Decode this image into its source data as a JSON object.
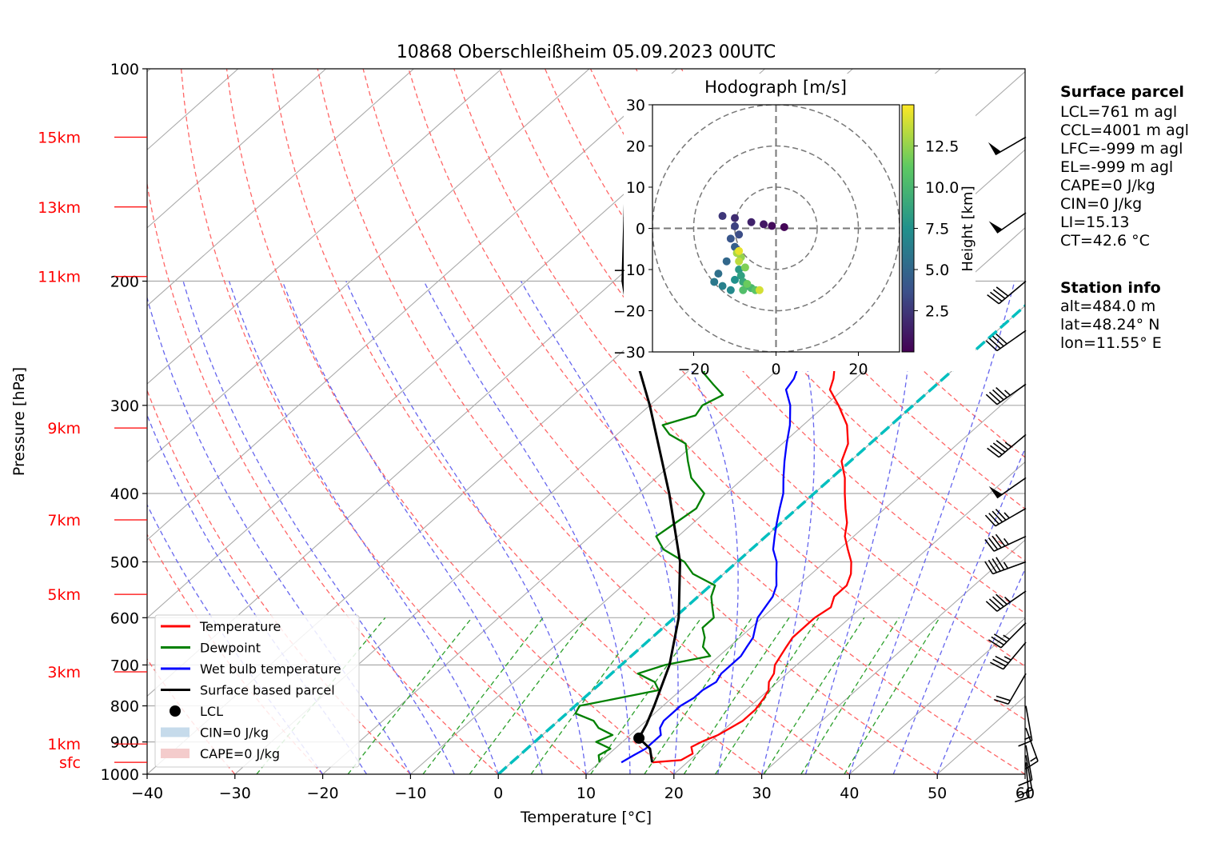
{
  "title": "10868 Oberschleißheim 05.09.2023 00UTC",
  "colors": {
    "temperature": "#ff0000",
    "dewpoint": "#008000",
    "wetbulb": "#0000ff",
    "parcel": "#000000",
    "freezing_level": "#00bfbf",
    "dry_adiabats": "#ff6666",
    "moist_adiabats": "#6666ee",
    "mixing_ratio": "#2ca02c",
    "isotherms": "#aaaaaa",
    "height_labels": "#ff0000"
  },
  "chart_data": {
    "type": "line",
    "subtype": "skew-T log-p diagram",
    "title": "10868 Oberschleißheim 05.09.2023 00UTC",
    "xlabel": "Temperature [°C]",
    "ylabel": "Pressure [hPa]",
    "xlim": [
      -40,
      60
    ],
    "ylim": [
      1000,
      100
    ],
    "y_scale": "log",
    "grid": true,
    "legend_position": "lower-left",
    "x_ticks": [
      "−40",
      "−30",
      "−20",
      "−10",
      "0",
      "10",
      "20",
      "30",
      "40",
      "50",
      "60"
    ],
    "y_ticks": [
      "100",
      "200",
      "300",
      "400",
      "500",
      "600",
      "700",
      "800",
      "900",
      "1000"
    ],
    "height_labels": [
      {
        "label": "15km",
        "p": 125
      },
      {
        "label": "13km",
        "p": 157
      },
      {
        "label": "11km",
        "p": 197
      },
      {
        "label": "9km",
        "p": 323
      },
      {
        "label": "7km",
        "p": 436
      },
      {
        "label": "5km",
        "p": 556
      },
      {
        "label": "3km",
        "p": 716
      },
      {
        "label": "1km",
        "p": 906
      },
      {
        "label": "sfc",
        "p": 962
      }
    ],
    "legend": [
      {
        "label": "Temperature",
        "kind": "line",
        "color": "#ff0000"
      },
      {
        "label": "Dewpoint",
        "kind": "line",
        "color": "#008000"
      },
      {
        "label": "Wet bulb temperature",
        "kind": "line",
        "color": "#0000ff"
      },
      {
        "label": "Surface based parcel",
        "kind": "line",
        "color": "#000000"
      },
      {
        "label": "LCL",
        "kind": "dot",
        "color": "#000000"
      },
      {
        "label": "CIN=0 J/kg",
        "kind": "patch",
        "color": "#c6dbeb"
      },
      {
        "label": "CAPE=0 J/kg",
        "kind": "patch",
        "color": "#f4cccc"
      }
    ],
    "series": [
      {
        "name": "Temperature",
        "points": [
          [
            962,
            16.0
          ],
          [
            955,
            19.0
          ],
          [
            935,
            19.5
          ],
          [
            915,
            18.5
          ],
          [
            900,
            19.0
          ],
          [
            880,
            20.0
          ],
          [
            860,
            20.5
          ],
          [
            840,
            21.0
          ],
          [
            810,
            21.0
          ],
          [
            780,
            20.5
          ],
          [
            760,
            20.0
          ],
          [
            740,
            19.0
          ],
          [
            720,
            18.5
          ],
          [
            700,
            17.5
          ],
          [
            680,
            17.0
          ],
          [
            660,
            16.5
          ],
          [
            640,
            16.0
          ],
          [
            620,
            16.0
          ],
          [
            600,
            16.0
          ],
          [
            580,
            16.5
          ],
          [
            560,
            15.5
          ],
          [
            540,
            15.5
          ],
          [
            520,
            14.5
          ],
          [
            500,
            13.0
          ],
          [
            480,
            11.0
          ],
          [
            460,
            9.0
          ],
          [
            440,
            7.5
          ],
          [
            420,
            5.5
          ],
          [
            400,
            3.5
          ],
          [
            380,
            1.5
          ],
          [
            360,
            -1.0
          ],
          [
            340,
            -2.5
          ],
          [
            320,
            -5.0
          ],
          [
            300,
            -8.5
          ],
          [
            285,
            -11.5
          ],
          [
            275,
            -12.5
          ],
          [
            260,
            -14.5
          ],
          [
            240,
            -17.5
          ],
          [
            225,
            -20.0
          ],
          [
            210,
            -22.5
          ],
          [
            195,
            -25.5
          ],
          [
            180,
            -28.5
          ],
          [
            170,
            -30.5
          ],
          [
            160,
            -33.5
          ],
          [
            150,
            -36.0
          ],
          [
            140,
            -39.5
          ],
          [
            130,
            -42.5
          ],
          [
            125,
            -44.5
          ]
        ]
      },
      {
        "name": "Dewpoint",
        "points": [
          [
            962,
            10.0
          ],
          [
            940,
            9.0
          ],
          [
            920,
            9.5
          ],
          [
            900,
            7.0
          ],
          [
            880,
            8.0
          ],
          [
            860,
            5.5
          ],
          [
            840,
            4.0
          ],
          [
            820,
            1.0
          ],
          [
            800,
            0.5
          ],
          [
            780,
            4.0
          ],
          [
            760,
            7.5
          ],
          [
            740,
            6.0
          ],
          [
            720,
            3.0
          ],
          [
            700,
            5.0
          ],
          [
            680,
            9.0
          ],
          [
            660,
            7.0
          ],
          [
            640,
            6.0
          ],
          [
            620,
            4.5
          ],
          [
            600,
            4.5
          ],
          [
            580,
            3.0
          ],
          [
            560,
            1.5
          ],
          [
            540,
            0.5
          ],
          [
            520,
            -3.5
          ],
          [
            500,
            -6.0
          ],
          [
            480,
            -10.0
          ],
          [
            460,
            -12.5
          ],
          [
            440,
            -12.0
          ],
          [
            420,
            -11.5
          ],
          [
            400,
            -12.5
          ],
          [
            380,
            -16.0
          ],
          [
            360,
            -18.5
          ],
          [
            340,
            -21.0
          ],
          [
            330,
            -24.0
          ],
          [
            320,
            -26.0
          ],
          [
            310,
            -23.5
          ],
          [
            300,
            -24.0
          ],
          [
            290,
            -23.0
          ],
          [
            280,
            -25.5
          ],
          [
            270,
            -28.0
          ],
          [
            260,
            -29.0
          ],
          [
            250,
            -32.0
          ],
          [
            240,
            -35.5
          ],
          [
            230,
            -36.5
          ],
          [
            220,
            -38.5
          ],
          [
            210,
            -40.0
          ],
          [
            200,
            -41.0
          ],
          [
            190,
            -42.5
          ],
          [
            180,
            -43.5
          ],
          [
            170,
            -46.5
          ],
          [
            160,
            -48.0
          ],
          [
            150,
            -51.0
          ],
          [
            145,
            -54.0
          ],
          [
            140,
            -56.0
          ],
          [
            135,
            -56.5
          ],
          [
            130,
            -56.0
          ],
          [
            125,
            -56.5
          ]
        ]
      },
      {
        "name": "Wet bulb temperature",
        "points": [
          [
            962,
            12.5
          ],
          [
            940,
            13.0
          ],
          [
            920,
            13.5
          ],
          [
            900,
            13.5
          ],
          [
            880,
            13.5
          ],
          [
            860,
            12.5
          ],
          [
            840,
            12.0
          ],
          [
            820,
            12.0
          ],
          [
            800,
            12.0
          ],
          [
            780,
            12.5
          ],
          [
            760,
            12.5
          ],
          [
            740,
            13.0
          ],
          [
            720,
            12.5
          ],
          [
            700,
            12.5
          ],
          [
            680,
            12.5
          ],
          [
            660,
            12.0
          ],
          [
            640,
            11.5
          ],
          [
            620,
            10.5
          ],
          [
            600,
            9.5
          ],
          [
            580,
            9.0
          ],
          [
            560,
            8.5
          ],
          [
            540,
            7.5
          ],
          [
            520,
            6.0
          ],
          [
            500,
            4.5
          ],
          [
            480,
            2.5
          ],
          [
            460,
            1.0
          ],
          [
            440,
            -0.5
          ],
          [
            420,
            -2.0
          ],
          [
            400,
            -3.5
          ],
          [
            380,
            -5.5
          ],
          [
            360,
            -7.5
          ],
          [
            340,
            -9.5
          ],
          [
            320,
            -11.5
          ],
          [
            300,
            -14.0
          ],
          [
            285,
            -16.5
          ],
          [
            275,
            -17.0
          ],
          [
            260,
            -18.5
          ],
          [
            240,
            -21.0
          ],
          [
            225,
            -23.5
          ],
          [
            210,
            -26.0
          ],
          [
            195,
            -29.0
          ],
          [
            180,
            -32.0
          ],
          [
            170,
            -34.0
          ],
          [
            160,
            -37.0
          ],
          [
            150,
            -40.0
          ],
          [
            140,
            -43.5
          ],
          [
            135,
            -45.0
          ],
          [
            130,
            -45.5
          ],
          [
            125,
            -47.0
          ]
        ]
      },
      {
        "name": "Surface based parcel",
        "points": [
          [
            962,
            16.0
          ],
          [
            920,
            14.0
          ],
          [
            889,
            11.4
          ],
          [
            850,
            10.5
          ],
          [
            800,
            9.0
          ],
          [
            700,
            5.5
          ],
          [
            600,
            0.5
          ],
          [
            500,
            -6.5
          ],
          [
            400,
            -16.5
          ],
          [
            300,
            -30.0
          ],
          [
            250,
            -39.0
          ],
          [
            200,
            -49.0
          ],
          [
            150,
            -60.0
          ],
          [
            125,
            -66.0
          ]
        ]
      }
    ],
    "lcl": {
      "p": 889,
      "T": 11.4
    },
    "freezing_level": {
      "p_bottom": 1000,
      "p_top": 120
    },
    "wind_barbs": [
      {
        "p": 125,
        "speed_kt": 50,
        "dir_deg": 240
      },
      {
        "p": 160,
        "speed_kt": 50,
        "dir_deg": 235
      },
      {
        "p": 200,
        "speed_kt": 40,
        "dir_deg": 230
      },
      {
        "p": 235,
        "speed_kt": 40,
        "dir_deg": 235
      },
      {
        "p": 280,
        "speed_kt": 45,
        "dir_deg": 235
      },
      {
        "p": 330,
        "speed_kt": 45,
        "dir_deg": 230
      },
      {
        "p": 380,
        "speed_kt": 50,
        "dir_deg": 235
      },
      {
        "p": 420,
        "speed_kt": 45,
        "dir_deg": 240
      },
      {
        "p": 460,
        "speed_kt": 45,
        "dir_deg": 245
      },
      {
        "p": 500,
        "speed_kt": 45,
        "dir_deg": 250
      },
      {
        "p": 550,
        "speed_kt": 45,
        "dir_deg": 235
      },
      {
        "p": 610,
        "speed_kt": 35,
        "dir_deg": 225
      },
      {
        "p": 650,
        "speed_kt": 35,
        "dir_deg": 220
      },
      {
        "p": 720,
        "speed_kt": 20,
        "dir_deg": 210
      },
      {
        "p": 800,
        "speed_kt": 15,
        "dir_deg": 170
      },
      {
        "p": 860,
        "speed_kt": 15,
        "dir_deg": 160
      },
      {
        "p": 910,
        "speed_kt": 10,
        "dir_deg": 170
      },
      {
        "p": 940,
        "speed_kt": 10,
        "dir_deg": 170
      },
      {
        "p": 962,
        "speed_kt": 10,
        "dir_deg": 175
      }
    ],
    "hodograph": {
      "title": "Hodograph [m/s]",
      "xlim": [
        -30,
        30
      ],
      "ylim": [
        -30,
        30
      ],
      "x_ticks": [
        "−20",
        "0",
        "20"
      ],
      "y_ticks": [
        "30",
        "20",
        "10",
        "0",
        "−10",
        "−20",
        "−30"
      ],
      "rings_ms": [
        10,
        20,
        30
      ],
      "colorbar_label": "Height [km]",
      "colorbar_ticks": [
        "12.5",
        "10.0",
        "7.5",
        "5.0",
        "2.5"
      ],
      "points": [
        [
          2,
          0.3,
          0.2
        ],
        [
          -1,
          0.6,
          0.5
        ],
        [
          -3,
          1.0,
          1.0
        ],
        [
          -6,
          1.5,
          1.5
        ],
        [
          -10,
          2.5,
          2.0
        ],
        [
          -13,
          3.0,
          2.5
        ],
        [
          -10,
          0.5,
          3.0
        ],
        [
          -9,
          -1.5,
          3.5
        ],
        [
          -11,
          -2.5,
          4.0
        ],
        [
          -10,
          -4.5,
          4.5
        ],
        [
          -12,
          -8.0,
          5.0
        ],
        [
          -14,
          -11.0,
          5.5
        ],
        [
          -15,
          -13.0,
          6.0
        ],
        [
          -13,
          -14.0,
          6.5
        ],
        [
          -11,
          -15.0,
          7.0
        ],
        [
          -10,
          -12.5,
          7.5
        ],
        [
          -9,
          -10.0,
          8.0
        ],
        [
          -8.5,
          -11.5,
          8.5
        ],
        [
          -8,
          -13.0,
          9.0
        ],
        [
          -7,
          -14.0,
          9.5
        ],
        [
          -6,
          -14.5,
          10.0
        ],
        [
          -8,
          -15.0,
          10.5
        ],
        [
          -5,
          -15.0,
          11.0
        ],
        [
          -7,
          -13.5,
          11.5
        ],
        [
          -7.5,
          -9.5,
          12.0
        ],
        [
          -8.5,
          -7.0,
          12.5
        ],
        [
          -9.5,
          -6.0,
          13.0
        ],
        [
          -9.0,
          -8.0,
          13.5
        ],
        [
          -4,
          -15.0,
          14.0
        ],
        [
          -9.0,
          -5.5,
          14.5
        ]
      ]
    }
  },
  "surface_parcel": {
    "heading": "Surface parcel",
    "lines": [
      "LCL=761 m agl",
      "CCL=4001 m agl",
      "LFC=-999 m agl",
      "EL=-999 m agl",
      "CAPE=0 J/kg",
      "CIN=0 J/kg",
      "LI=15.13",
      "CT=42.6 °C"
    ]
  },
  "station_info": {
    "heading": "Station info",
    "lines": [
      "alt=484.0 m",
      "lat=48.24° N",
      "lon=11.55° E"
    ]
  }
}
